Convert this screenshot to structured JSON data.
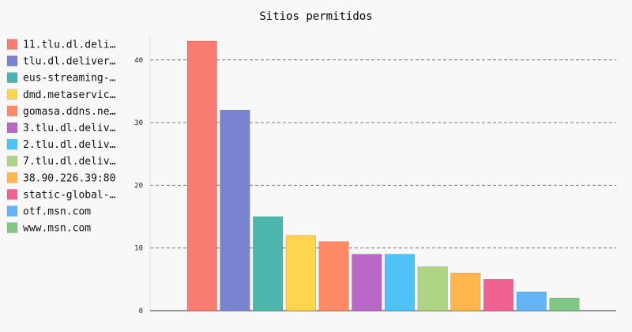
{
  "chart_data": {
    "type": "bar",
    "title": "Sitios permitidos",
    "xlabel": "",
    "ylabel": "",
    "ylim": [
      0,
      43
    ],
    "yticks": [
      0,
      10,
      20,
      30,
      40
    ],
    "grid": true,
    "legend_position": "left",
    "series": [
      {
        "name": "11.tlu.dl.deli…",
        "value": 43,
        "color": "#f97c72"
      },
      {
        "name": "tlu.dl.deliver…",
        "value": 32,
        "color": "#7884d0"
      },
      {
        "name": "eus-streaming-…",
        "value": 15,
        "color": "#4db6ac"
      },
      {
        "name": "dmd.metaservic…",
        "value": 12,
        "color": "#ffd54f"
      },
      {
        "name": "gomasa.ddns.ne…",
        "value": 11,
        "color": "#ff8a65"
      },
      {
        "name": "3.tlu.dl.deliv…",
        "value": 9,
        "color": "#ba68c8"
      },
      {
        "name": "2.tlu.dl.deliv…",
        "value": 9,
        "color": "#4fc3f7"
      },
      {
        "name": "7.tlu.dl.deliv…",
        "value": 7,
        "color": "#aed581"
      },
      {
        "name": "38.90.226.39:80",
        "value": 6,
        "color": "#ffb74d"
      },
      {
        "name": "static-global-…",
        "value": 5,
        "color": "#f06292"
      },
      {
        "name": "otf.msn.com",
        "value": 3,
        "color": "#64b5f6"
      },
      {
        "name": "www.msn.com",
        "value": 2,
        "color": "#81c784"
      }
    ]
  }
}
